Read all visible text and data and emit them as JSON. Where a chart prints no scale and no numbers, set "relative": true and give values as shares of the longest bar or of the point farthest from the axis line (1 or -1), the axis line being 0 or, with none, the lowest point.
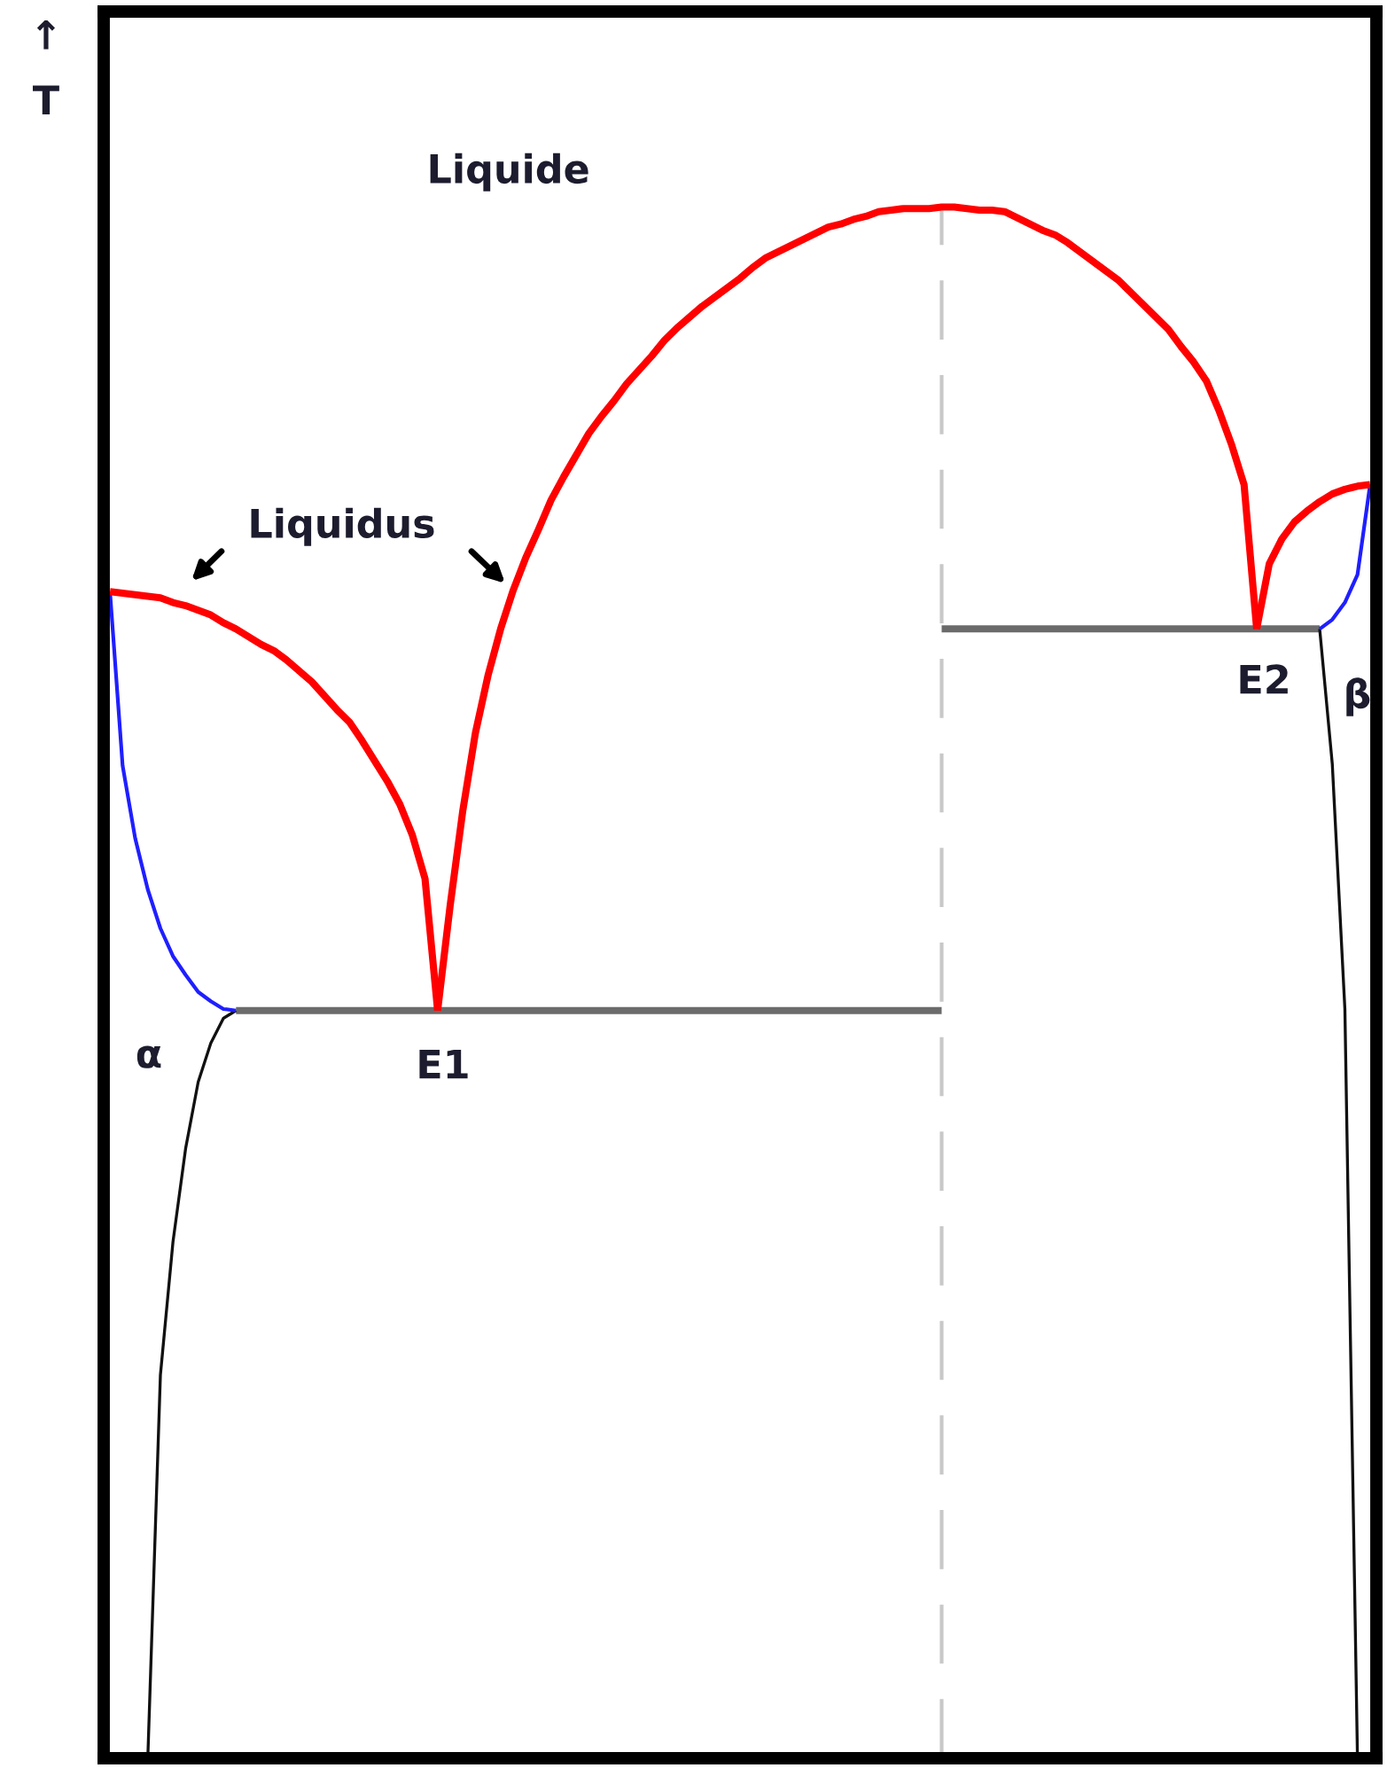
{
  "chart_data": {
    "type": "line",
    "relative": true,
    "ylabel": "↑\nT",
    "annotations": [
      "Liquide",
      "Liquidus",
      "E1",
      "E2",
      "α",
      "β"
    ],
    "categories": [
      null,
      null,
      null,
      null,
      null,
      null,
      null,
      null,
      null,
      null,
      null,
      null,
      null,
      null,
      null,
      null,
      null,
      null,
      null,
      null,
      null,
      null,
      null,
      null,
      null,
      null,
      null,
      null,
      null,
      null,
      null,
      null,
      null,
      null,
      null,
      null,
      null,
      null,
      null,
      null,
      null,
      null,
      null,
      null,
      null,
      null,
      null,
      null,
      null,
      null,
      null,
      null,
      null,
      null,
      null,
      null,
      null,
      null,
      null,
      null,
      null,
      null,
      null,
      null,
      null,
      null,
      null,
      null,
      null,
      null,
      null,
      null,
      null,
      null,
      null,
      null,
      null,
      null,
      null,
      null,
      null,
      null,
      null,
      null,
      null,
      null,
      null,
      null,
      null,
      null,
      null,
      null,
      null,
      null,
      null,
      null,
      null,
      null,
      null,
      null,
      null
    ],
    "series": [
      {
        "color": "#6b6b6b",
        "values": [
          null,
          null,
          null,
          null,
          null,
          null,
          null,
          null,
          null,
          null,
          0.482,
          0.482,
          0.482,
          0.482,
          0.482,
          0.482,
          0.482,
          0.482,
          0.482,
          0.482,
          0.482,
          0.482,
          0.482,
          0.482,
          0.482,
          0.482,
          0.482,
          0.482,
          0.482,
          0.482,
          0.482,
          0.482,
          0.482,
          0.482,
          0.482,
          0.482,
          0.482,
          0.482,
          0.482,
          0.482,
          0.482,
          0.482,
          0.482,
          0.482,
          0.482,
          0.482,
          0.482,
          0.482,
          0.482,
          0.482,
          0.482,
          0.482,
          0.482,
          0.482,
          0.482,
          0.482,
          0.482,
          0.482,
          0.482,
          0.482,
          0.482,
          0.482,
          0.482,
          0.482,
          0.482,
          0.482,
          0.482,
          null,
          null,
          null,
          null,
          null,
          null,
          null,
          null,
          null,
          null,
          null,
          null,
          null,
          null,
          null,
          null,
          null,
          null,
          null,
          null,
          null,
          null,
          null,
          null,
          null,
          null,
          null,
          null,
          null,
          null,
          null,
          null,
          null,
          null
        ]
      },
      {
        "color": "#6b6b6b",
        "values": [
          null,
          null,
          null,
          null,
          null,
          null,
          null,
          null,
          null,
          null,
          null,
          null,
          null,
          null,
          null,
          null,
          null,
          null,
          null,
          null,
          null,
          null,
          null,
          null,
          null,
          null,
          null,
          null,
          null,
          null,
          null,
          null,
          null,
          null,
          null,
          null,
          null,
          null,
          null,
          null,
          null,
          null,
          null,
          null,
          null,
          null,
          null,
          null,
          null,
          null,
          null,
          null,
          null,
          null,
          null,
          null,
          null,
          null,
          null,
          null,
          null,
          null,
          null,
          null,
          null,
          null,
          0.728,
          0.728,
          0.728,
          0.728,
          0.728,
          0.728,
          0.728,
          0.728,
          0.728,
          0.728,
          0.728,
          0.728,
          0.728,
          0.728,
          0.728,
          0.728,
          0.728,
          0.728,
          0.728,
          0.728,
          0.728,
          0.728,
          0.728,
          0.728,
          0.728,
          0.728,
          0.728,
          0.728,
          0.728,
          0.728,
          0.728,
          null,
          null,
          null,
          null
        ]
      },
      {
        "color": "#111111",
        "values": [
          null,
          null,
          null,
          0,
          0.247,
          0.333,
          0.393,
          0.436,
          0.461,
          0.477,
          0.482,
          null,
          null,
          null,
          null,
          null,
          null,
          null,
          null,
          null,
          null,
          null,
          null,
          null,
          null,
          null,
          null,
          null,
          null,
          null,
          null,
          null,
          null,
          null,
          null,
          null,
          null,
          null,
          null,
          null,
          null,
          null,
          null,
          null,
          null,
          null,
          null,
          null,
          null,
          null,
          null,
          null,
          null,
          null,
          null,
          null,
          null,
          null,
          null,
          null,
          null,
          null,
          null,
          null,
          null,
          null,
          null,
          null,
          null,
          null,
          null,
          null,
          null,
          null,
          null,
          null,
          null,
          null,
          null,
          null,
          null,
          null,
          null,
          null,
          null,
          null,
          null,
          null,
          null,
          null,
          null,
          null,
          null,
          null,
          null,
          null,
          null,
          null,
          null,
          null,
          null
        ]
      },
      {
        "color": "#111111",
        "values": [
          null,
          null,
          null,
          null,
          null,
          null,
          null,
          null,
          null,
          null,
          null,
          null,
          null,
          null,
          null,
          null,
          null,
          null,
          null,
          null,
          null,
          null,
          null,
          null,
          null,
          null,
          null,
          null,
          null,
          null,
          null,
          null,
          null,
          null,
          null,
          null,
          null,
          null,
          null,
          null,
          null,
          null,
          null,
          null,
          null,
          null,
          null,
          null,
          null,
          null,
          null,
          null,
          null,
          null,
          null,
          null,
          null,
          null,
          null,
          null,
          null,
          null,
          null,
          null,
          null,
          null,
          null,
          null,
          null,
          null,
          null,
          null,
          null,
          null,
          null,
          null,
          null,
          null,
          null,
          null,
          null,
          null,
          null,
          null,
          null,
          null,
          null,
          null,
          null,
          null,
          null,
          null,
          null,
          null,
          null,
          null,
          0.728,
          0.641,
          0.483,
          0,
          null
        ]
      },
      {
        "color": "#1f1fff",
        "values": [
          0.752,
          0.64,
          0.593,
          0.56,
          0.535,
          0.517,
          0.505,
          0.494,
          0.488,
          0.483,
          0.482,
          null,
          null,
          null,
          null,
          null,
          null,
          null,
          null,
          null,
          null,
          null,
          null,
          null,
          null,
          null,
          null,
          null,
          null,
          null,
          null,
          null,
          null,
          null,
          null,
          null,
          null,
          null,
          null,
          null,
          null,
          null,
          null,
          null,
          null,
          null,
          null,
          null,
          null,
          null,
          null,
          null,
          null,
          null,
          null,
          null,
          null,
          null,
          null,
          null,
          null,
          null,
          null,
          null,
          null,
          null,
          null,
          null,
          null,
          null,
          null,
          null,
          null,
          null,
          null,
          null,
          null,
          null,
          null,
          null,
          null,
          null,
          null,
          null,
          null,
          null,
          null,
          null,
          null,
          null,
          null,
          null,
          null,
          null,
          null,
          null,
          null,
          null,
          null,
          null,
          null
        ]
      },
      {
        "color": "#1f1fff",
        "values": [
          null,
          null,
          null,
          null,
          null,
          null,
          null,
          null,
          null,
          null,
          null,
          null,
          null,
          null,
          null,
          null,
          null,
          null,
          null,
          null,
          null,
          null,
          null,
          null,
          null,
          null,
          null,
          null,
          null,
          null,
          null,
          null,
          null,
          null,
          null,
          null,
          null,
          null,
          null,
          null,
          null,
          null,
          null,
          null,
          null,
          null,
          null,
          null,
          null,
          null,
          null,
          null,
          null,
          null,
          null,
          null,
          null,
          null,
          null,
          null,
          null,
          null,
          null,
          null,
          null,
          null,
          null,
          null,
          null,
          null,
          null,
          null,
          null,
          null,
          null,
          null,
          null,
          null,
          null,
          null,
          null,
          null,
          null,
          null,
          null,
          null,
          null,
          null,
          null,
          null,
          null,
          null,
          null,
          null,
          null,
          null,
          0.728,
          0.734,
          0.745,
          0.763,
          0.821
        ]
      },
      {
        "color": "#ff0000",
        "values": [
          0.752,
          0.751,
          0.75,
          0.749,
          0.748,
          0.745,
          0.743,
          0.74,
          0.737,
          0.732,
          0.728,
          0.723,
          0.718,
          0.714,
          0.708,
          0.701,
          0.694,
          0.685,
          0.676,
          0.668,
          0.656,
          0.643,
          0.63,
          0.615,
          0.595,
          0.567,
          0.482,
          null,
          null,
          null,
          null,
          null,
          null,
          null,
          null,
          null,
          null,
          null,
          null,
          null,
          null,
          null,
          null,
          null,
          null,
          null,
          null,
          null,
          null,
          null,
          null,
          null,
          null,
          null,
          null,
          null,
          null,
          null,
          null,
          null,
          null,
          null,
          null,
          null,
          null,
          null,
          null,
          null,
          null,
          null,
          null,
          null,
          null,
          null,
          null,
          null,
          null,
          null,
          null,
          null,
          null,
          null,
          null,
          null,
          null,
          null,
          null,
          null,
          null,
          null,
          null,
          null,
          null,
          null,
          null,
          null,
          null,
          null,
          null,
          null,
          null
        ]
      },
      {
        "color": "#ff0000",
        "values": [
          null,
          null,
          null,
          null,
          null,
          null,
          null,
          null,
          null,
          null,
          null,
          null,
          null,
          null,
          null,
          null,
          null,
          null,
          null,
          null,
          null,
          null,
          null,
          null,
          null,
          null,
          0.482,
          0.55,
          0.611,
          0.661,
          0.698,
          0.728,
          0.753,
          0.774,
          0.792,
          0.811,
          0.826,
          0.84,
          0.854,
          0.865,
          0.875,
          0.886,
          0.895,
          0.904,
          0.914,
          0.922,
          0.929,
          0.936,
          0.942,
          0.948,
          0.954,
          0.961,
          0.967,
          0.971,
          0.975,
          0.979,
          0.983,
          0.987,
          0.989,
          0.992,
          0.994,
          0.997,
          0.998,
          0.999,
          0.999,
          0.999,
          1.0,
          1.0,
          0.999,
          0.998,
          0.998,
          0.997,
          0.993,
          0.989,
          0.985,
          0.982,
          0.977,
          0.971,
          0.965,
          0.959,
          0.953,
          0.945,
          0.937,
          0.929,
          0.921,
          0.91,
          0.9,
          0.888,
          0.869,
          0.847,
          0.821,
          0.728,
          null,
          null,
          null,
          null,
          null,
          null,
          null,
          null,
          null
        ]
      },
      {
        "color": "#ff0000",
        "values": [
          null,
          null,
          null,
          null,
          null,
          null,
          null,
          null,
          null,
          null,
          null,
          null,
          null,
          null,
          null,
          null,
          null,
          null,
          null,
          null,
          null,
          null,
          null,
          null,
          null,
          null,
          null,
          null,
          null,
          null,
          null,
          null,
          null,
          null,
          null,
          null,
          null,
          null,
          null,
          null,
          null,
          null,
          null,
          null,
          null,
          null,
          null,
          null,
          null,
          null,
          null,
          null,
          null,
          null,
          null,
          null,
          null,
          null,
          null,
          null,
          null,
          null,
          null,
          null,
          null,
          null,
          null,
          null,
          null,
          null,
          null,
          null,
          null,
          null,
          null,
          null,
          null,
          null,
          null,
          null,
          null,
          null,
          null,
          null,
          null,
          null,
          null,
          null,
          null,
          null,
          null,
          0.728,
          0.77,
          0.786,
          0.797,
          0.804,
          0.81,
          0.815,
          0.818,
          0.82,
          0.821
        ]
      }
    ]
  }
}
